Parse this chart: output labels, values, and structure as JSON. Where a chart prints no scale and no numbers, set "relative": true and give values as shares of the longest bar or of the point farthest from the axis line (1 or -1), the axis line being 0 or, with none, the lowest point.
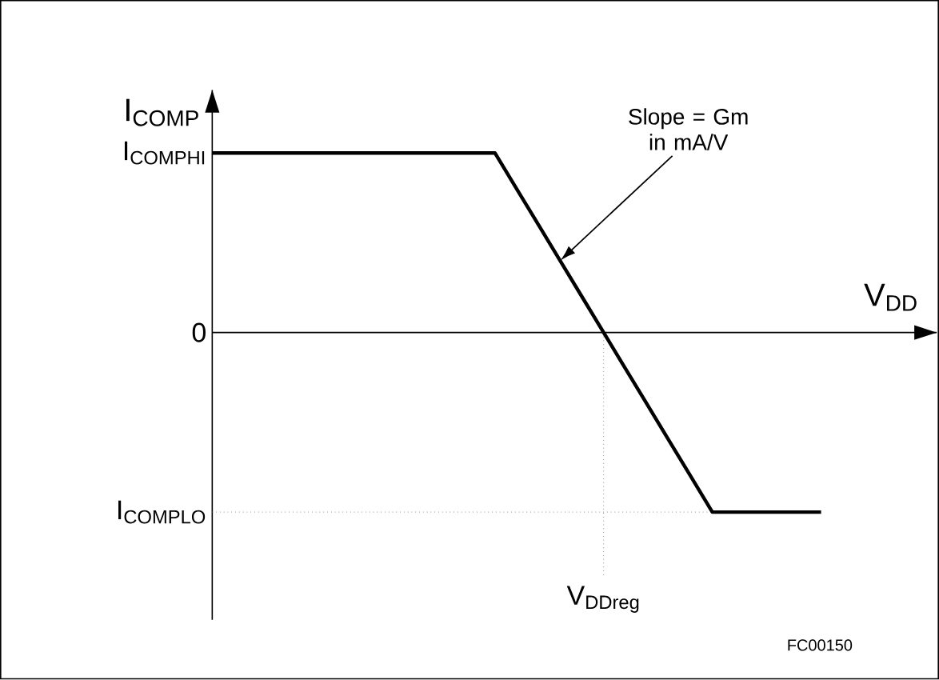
{
  "chart_data": {
    "type": "line",
    "relative": true,
    "xlabel": "V$_{DD}$",
    "ylabel": "I$_{COMP}$",
    "categories": [
      null,
      null,
      null,
      null,
      null,
      null,
      null,
      null,
      null,
      null,
      null,
      null,
      null,
      null,
      null,
      null,
      null,
      null,
      null,
      null,
      null,
      null,
      null,
      null,
      null,
      null,
      null,
      null,
      null
    ],
    "series": [
      {
        "color": "#000000",
        "values": [
          1,
          1,
          1,
          1,
          1,
          1,
          1,
          1,
          1,
          1,
          1,
          1,
          1,
          1,
          0.8,
          0.6,
          0.4,
          0.2,
          0,
          -0.2,
          -0.4,
          -0.6,
          -0.8,
          -1,
          -1,
          -1,
          -1,
          -1,
          -1
        ]
      }
    ],
    "ref_lines": [
      {
        "axis": "y",
        "value": -1,
        "line_style": "dotted"
      }
    ],
    "annotations": [
      "I$_{COMPHI}$",
      "0",
      "I$_{COMPLO}$",
      "V$_{DDreg}$",
      "Slope = Gm in mA/V",
      "FC00150"
    ],
    "grid": false,
    "marker": "none",
    "line_style": "solid"
  }
}
